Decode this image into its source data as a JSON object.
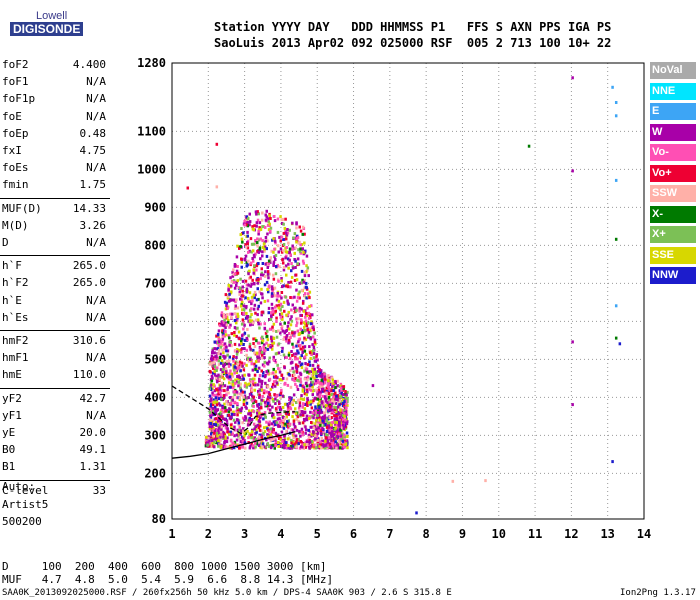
{
  "logo": {
    "line1": "Lowell",
    "line2": "DIGISONDE"
  },
  "header": {
    "row1": "Station YYYY DAY   DDD HHMMSS P1   FFS S AXN PPS IGA PS",
    "row2": "SaoLuis 2013 Apr02 092 025000 RSF  005 2 713 100 10+ 22"
  },
  "params": [
    {
      "k": "foF2",
      "v": "4.400"
    },
    {
      "k": "foF1",
      "v": "N/A"
    },
    {
      "k": "foF1p",
      "v": "N/A"
    },
    {
      "k": "foE",
      "v": "N/A"
    },
    {
      "k": "foEp",
      "v": "0.48"
    },
    {
      "k": "fxI",
      "v": "4.75"
    },
    {
      "k": "foEs",
      "v": "N/A"
    },
    {
      "k": "fmin",
      "v": "1.75"
    },
    {
      "k": "MUF(D)",
      "v": "14.33"
    },
    {
      "k": "M(D)",
      "v": "3.26"
    },
    {
      "k": "D",
      "v": "N/A"
    },
    {
      "k": "h`F",
      "v": "265.0"
    },
    {
      "k": "h`F2",
      "v": "265.0"
    },
    {
      "k": "h`E",
      "v": "N/A"
    },
    {
      "k": "h`Es",
      "v": "N/A"
    },
    {
      "k": "hmF2",
      "v": "310.6"
    },
    {
      "k": "hmF1",
      "v": "N/A"
    },
    {
      "k": "hmE",
      "v": "110.0"
    },
    {
      "k": "yF2",
      "v": "42.7"
    },
    {
      "k": "yF1",
      "v": "N/A"
    },
    {
      "k": "yE",
      "v": "20.0"
    },
    {
      "k": "B0",
      "v": "49.1"
    },
    {
      "k": "B1",
      "v": "1.31"
    },
    {
      "k": "C-level",
      "v": "33"
    }
  ],
  "auto": {
    "l1": "Auto:",
    "l2": "Artist5",
    "l3": "500200"
  },
  "footer": {
    "row1": "D     100  200  400  600  800 1000 1500 3000 [km]",
    "row2": "MUF   4.7  4.8  5.0  5.4  5.9  6.6  8.8 14.3 [MHz]",
    "file": "SAA0K_2013092025000.RSF / 260fx256h 50 kHz 5.0 km / DPS-4 SAA0K 903 / 2.6 S 315.8 E",
    "version": "Ion2Png 1.3.17"
  },
  "legend": [
    {
      "label": "NoVal",
      "color": "#aaaaaa"
    },
    {
      "label": "NNE",
      "color": "#00e5ff"
    },
    {
      "label": "E",
      "color": "#3da5f5"
    },
    {
      "label": "W",
      "color": "#a800a8"
    },
    {
      "label": "Vo-",
      "color": "#ff4fb4"
    },
    {
      "label": "Vo+",
      "color": "#ee0033"
    },
    {
      "label": "SSW",
      "color": "#ffb0a8"
    },
    {
      "label": "X-",
      "color": "#007a00"
    },
    {
      "label": "X+",
      "color": "#7cc056"
    },
    {
      "label": "SSE",
      "color": "#d7d700"
    },
    {
      "label": "NNW",
      "color": "#1c1ccc"
    }
  ],
  "chart_data": {
    "type": "scatter",
    "title": "",
    "xlabel": "",
    "ylabel": "",
    "xlim": [
      1,
      14
    ],
    "ylim": [
      80,
      1280
    ],
    "x_ticks": [
      1,
      2,
      3,
      4,
      5,
      6,
      7,
      8,
      9,
      10,
      11,
      12,
      13,
      14
    ],
    "y_ticks": [
      80,
      200,
      300,
      400,
      500,
      600,
      700,
      800,
      900,
      1000,
      1100,
      1280
    ],
    "grid": "dotted",
    "legend_placement": "right",
    "virtual_height_trace": {
      "x": [
        1.0,
        1.5,
        2.0,
        2.4,
        2.8,
        3.2,
        3.6,
        4.0,
        4.4
      ],
      "y": [
        240,
        245,
        252,
        262,
        272,
        282,
        292,
        300,
        310
      ]
    },
    "profile_curve": {
      "x": [
        1.0,
        1.5,
        2.0,
        2.3,
        2.6,
        2.9,
        3.1,
        3.3,
        3.6,
        3.9,
        4.2,
        4.4
      ],
      "y": [
        430,
        400,
        370,
        345,
        320,
        305,
        320,
        350,
        358,
        360,
        362,
        362
      ]
    },
    "scatter_region": {
      "x_range": [
        1.9,
        5.8
      ],
      "y_min": 270,
      "y_max_by_x": [
        [
          2.0,
          500
        ],
        [
          2.5,
          700
        ],
        [
          3.0,
          900
        ],
        [
          3.5,
          900
        ],
        [
          4.0,
          880
        ],
        [
          4.6,
          860
        ],
        [
          5.0,
          480
        ],
        [
          5.8,
          430
        ]
      ]
    },
    "outliers": [
      {
        "x": 1.4,
        "y": 955,
        "dir": "Vo+"
      },
      {
        "x": 2.2,
        "y": 1070,
        "dir": "Vo+"
      },
      {
        "x": 2.2,
        "y": 958,
        "dir": "SSW"
      },
      {
        "x": 6.5,
        "y": 435,
        "dir": "W"
      },
      {
        "x": 7.7,
        "y": 100,
        "dir": "NNW"
      },
      {
        "x": 8.7,
        "y": 183,
        "dir": "SSW"
      },
      {
        "x": 9.6,
        "y": 185,
        "dir": "SSW"
      },
      {
        "x": 10.8,
        "y": 1065,
        "dir": "X-"
      },
      {
        "x": 12.0,
        "y": 1245,
        "dir": "W"
      },
      {
        "x": 12.0,
        "y": 1000,
        "dir": "W"
      },
      {
        "x": 12.0,
        "y": 550,
        "dir": "W"
      },
      {
        "x": 12.0,
        "y": 385,
        "dir": "W"
      },
      {
        "x": 13.1,
        "y": 1220,
        "dir": "E"
      },
      {
        "x": 13.2,
        "y": 1180,
        "dir": "E"
      },
      {
        "x": 13.2,
        "y": 1145,
        "dir": "E"
      },
      {
        "x": 13.2,
        "y": 975,
        "dir": "E"
      },
      {
        "x": 13.2,
        "y": 820,
        "dir": "X-"
      },
      {
        "x": 13.2,
        "y": 645,
        "dir": "E"
      },
      {
        "x": 13.2,
        "y": 560,
        "dir": "X-"
      },
      {
        "x": 13.3,
        "y": 545,
        "dir": "NNW"
      },
      {
        "x": 13.1,
        "y": 235,
        "dir": "NNW"
      }
    ]
  }
}
